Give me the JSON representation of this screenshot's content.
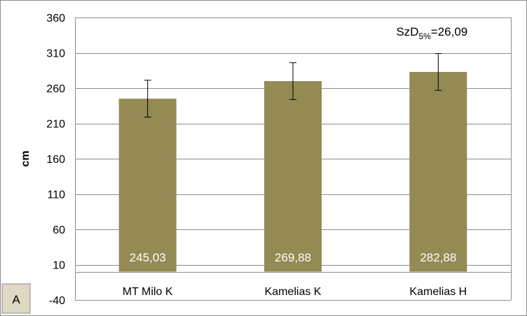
{
  "chart_data": {
    "type": "bar",
    "categories": [
      "MT Milo K",
      "Kamelias K",
      "Kamelias H"
    ],
    "values": [
      245.03,
      269.88,
      282.88
    ],
    "value_labels": [
      "245,03",
      "269,88",
      "282,88"
    ],
    "error": [
      26.09,
      26.09,
      26.09
    ],
    "ylabel": "cm",
    "ylim": [
      -40,
      360
    ],
    "yticks": [
      -40,
      10,
      60,
      110,
      160,
      210,
      260,
      310,
      360
    ],
    "grid": true,
    "bar_color": "#948a54",
    "annotation": {
      "main": "SzD",
      "sub": "5%",
      "rest": "=26,09"
    },
    "panel_label": "A"
  }
}
